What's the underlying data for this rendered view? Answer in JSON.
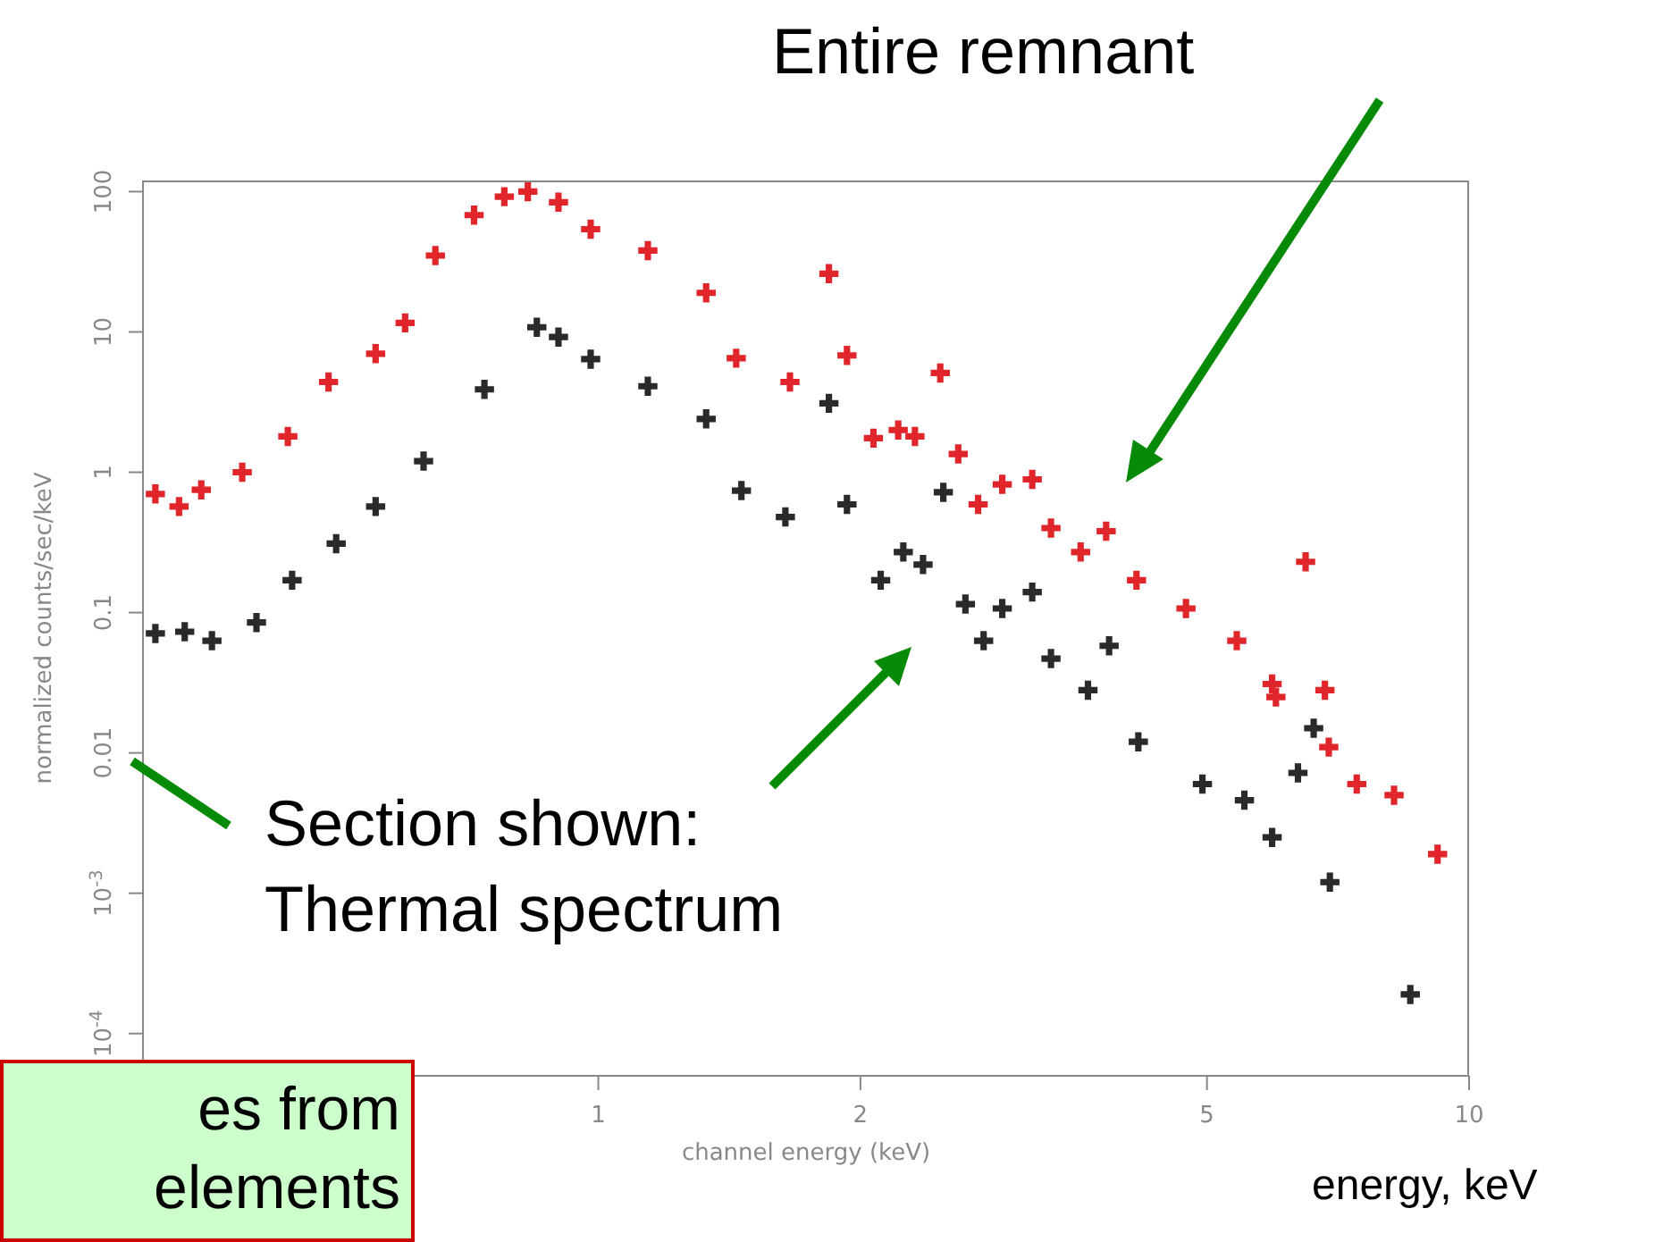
{
  "chart_data": {
    "type": "scatter",
    "xlabel": "channel energy (keV)",
    "ylabel": "normalized counts/sec/keV",
    "log": "xy",
    "xlim": [
      0.3,
      10
    ],
    "ylim": [
      5e-05,
      120
    ],
    "xticks": [
      1,
      2,
      5,
      10
    ],
    "yticks": [
      {
        "value": 0.0001,
        "label": "10$^{-4}$"
      },
      {
        "value": 0.001,
        "label": "10$^{-3}$"
      },
      0.01,
      0.1,
      1,
      10,
      100
    ],
    "marker": "cross",
    "grid": false,
    "legend": false,
    "annotations": [
      "Entire remnant",
      "Section shown:\nThermal spectrum",
      "es from\nelements",
      "energy, keV"
    ],
    "series": [
      {
        "color": "#e0262a",
        "x": [
          0.31,
          0.33,
          0.35,
          0.39,
          0.44,
          0.49,
          0.555,
          0.6,
          0.65,
          0.72,
          0.78,
          0.83,
          0.9,
          0.98,
          1.14,
          1.33,
          1.44,
          1.66,
          1.84,
          1.93,
          2.07,
          2.21,
          2.31,
          2.47,
          2.59,
          2.73,
          2.91,
          3.15,
          3.31,
          3.58,
          3.83,
          4.15,
          4.73,
          5.41,
          5.94,
          6.0,
          6.49,
          6.83,
          6.9,
          7.43,
          8.2,
          9.2
        ],
        "values": [
          0.7,
          0.57,
          0.75,
          1.0,
          1.8,
          4.4,
          7.0,
          11.6,
          35,
          68,
          92,
          100,
          84,
          54,
          38,
          19,
          6.5,
          4.4,
          26,
          6.8,
          1.75,
          2.0,
          1.8,
          5.1,
          1.35,
          0.59,
          0.82,
          0.89,
          0.4,
          0.27,
          0.38,
          0.17,
          0.107,
          0.063,
          0.031,
          0.025,
          0.23,
          0.028,
          0.011,
          0.006,
          0.005,
          0.0019
        ]
      },
      {
        "color": "#2a2a2a",
        "x": [
          0.31,
          0.335,
          0.36,
          0.405,
          0.445,
          0.5,
          0.555,
          0.63,
          0.74,
          0.85,
          0.9,
          0.98,
          1.14,
          1.33,
          1.46,
          1.64,
          1.84,
          1.93,
          2.11,
          2.24,
          2.36,
          2.49,
          2.64,
          2.77,
          2.91,
          3.15,
          3.31,
          3.65,
          3.86,
          4.17,
          4.94,
          5.52,
          5.94,
          6.36,
          6.63,
          6.92,
          8.56
        ],
        "values": [
          0.071,
          0.073,
          0.063,
          0.085,
          0.17,
          0.31,
          0.57,
          1.2,
          3.9,
          10.8,
          9.2,
          6.4,
          4.1,
          2.4,
          0.74,
          0.48,
          3.1,
          0.59,
          0.17,
          0.27,
          0.22,
          0.72,
          0.115,
          0.063,
          0.107,
          0.14,
          0.047,
          0.028,
          0.058,
          0.012,
          0.006,
          0.0046,
          0.0025,
          0.0072,
          0.015,
          0.0012,
          0.00019
        ]
      }
    ]
  }
}
